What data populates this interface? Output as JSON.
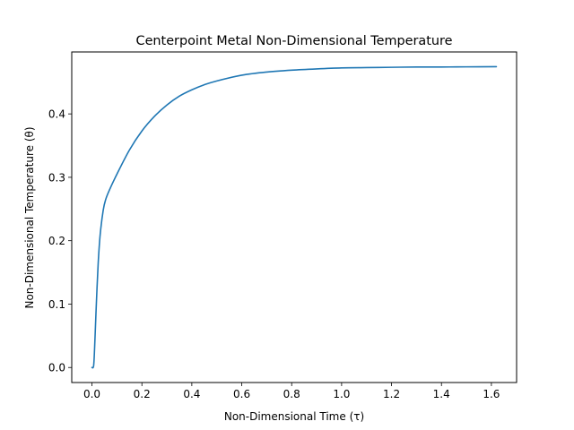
{
  "chart_data": {
    "type": "line",
    "title": "Centerpoint Metal Non-Dimensional Temperature",
    "xlabel": "Non-Dimensional Time (τ)",
    "ylabel": "Non-Dimensional Temperature (θ)",
    "xlim": [
      -0.081,
      1.701
    ],
    "ylim": [
      -0.0237,
      0.4977
    ],
    "x_ticks": [
      0.0,
      0.2,
      0.4,
      0.6,
      0.8,
      1.0,
      1.2,
      1.4,
      1.6
    ],
    "x_tick_labels": [
      "0.0",
      "0.2",
      "0.4",
      "0.6",
      "0.8",
      "1.0",
      "1.2",
      "1.4",
      "1.6"
    ],
    "y_ticks": [
      0.0,
      0.1,
      0.2,
      0.3,
      0.4
    ],
    "y_tick_labels": [
      "0.0",
      "0.1",
      "0.2",
      "0.3",
      "0.4"
    ],
    "grid": false,
    "line_color": "#1f77b4",
    "series": [
      {
        "x": [
          0.0,
          0.007,
          0.012,
          0.018,
          0.025,
          0.033,
          0.045,
          0.055,
          0.07,
          0.1,
          0.15,
          0.2,
          0.25,
          0.3,
          0.35,
          0.4,
          0.45,
          0.5,
          0.6,
          0.7,
          0.8,
          0.9,
          1.0,
          1.1,
          1.2,
          1.3,
          1.4,
          1.5,
          1.62
        ],
        "y": [
          0.0,
          0.004,
          0.045,
          0.105,
          0.165,
          0.21,
          0.248,
          0.265,
          0.28,
          0.305,
          0.343,
          0.373,
          0.396,
          0.414,
          0.428,
          0.438,
          0.446,
          0.452,
          0.461,
          0.466,
          0.469,
          0.471,
          0.4725,
          0.473,
          0.4735,
          0.474,
          0.474,
          0.4742,
          0.4745
        ]
      }
    ]
  }
}
